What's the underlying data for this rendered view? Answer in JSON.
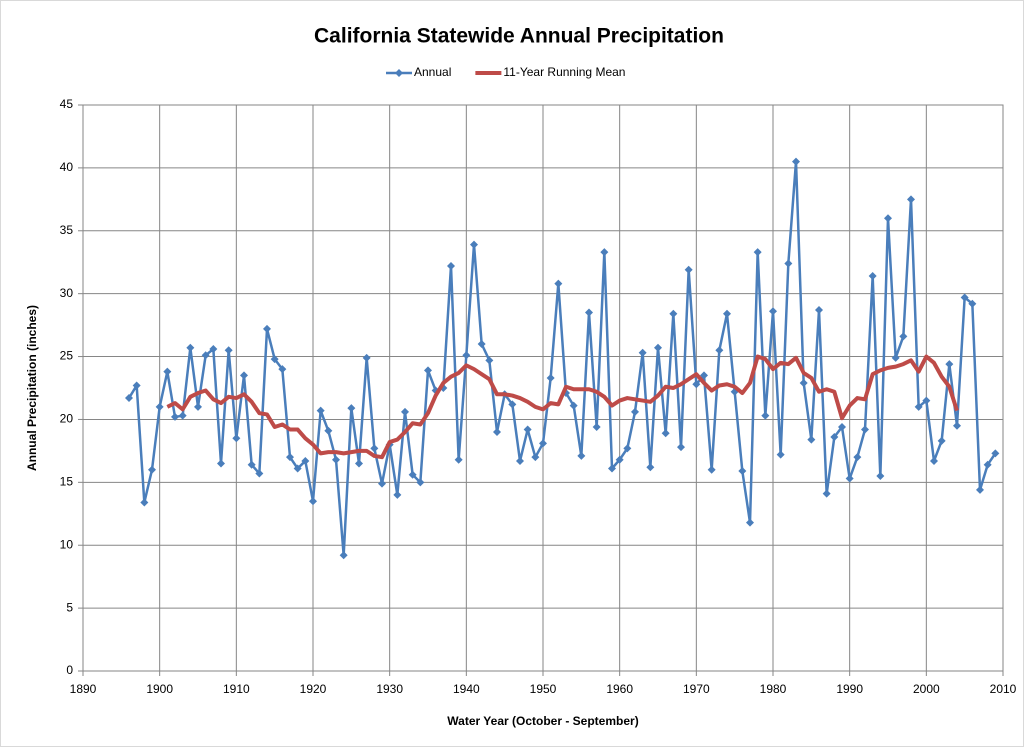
{
  "chart_data": {
    "type": "line",
    "title": "California Statewide Annual Precipitation",
    "xlabel": "Water Year (October - September)",
    "ylabel": "Annual Precipitation (inches)",
    "x": [
      1896,
      1897,
      1898,
      1899,
      1900,
      1901,
      1902,
      1903,
      1904,
      1905,
      1906,
      1907,
      1908,
      1909,
      1910,
      1911,
      1912,
      1913,
      1914,
      1915,
      1916,
      1917,
      1918,
      1919,
      1920,
      1921,
      1922,
      1923,
      1924,
      1925,
      1926,
      1927,
      1928,
      1929,
      1930,
      1931,
      1932,
      1933,
      1934,
      1935,
      1936,
      1937,
      1938,
      1939,
      1940,
      1941,
      1942,
      1943,
      1944,
      1945,
      1946,
      1947,
      1948,
      1949,
      1950,
      1951,
      1952,
      1953,
      1954,
      1955,
      1956,
      1957,
      1958,
      1959,
      1960,
      1961,
      1962,
      1963,
      1964,
      1965,
      1966,
      1967,
      1968,
      1969,
      1970,
      1971,
      1972,
      1973,
      1974,
      1975,
      1976,
      1977,
      1978,
      1979,
      1980,
      1981,
      1982,
      1983,
      1984,
      1985,
      1986,
      1987,
      1988,
      1989,
      1990,
      1991,
      1992,
      1993,
      1994,
      1995,
      1996,
      1997,
      1998,
      1999,
      2000,
      2001,
      2002,
      2003,
      2004,
      2005,
      2006,
      2007,
      2008,
      2009
    ],
    "series": [
      {
        "name": "Annual",
        "color": "#4a7ebb",
        "marker": "diamond",
        "values": [
          21.7,
          22.7,
          13.4,
          16.0,
          21.0,
          23.8,
          20.2,
          20.3,
          25.7,
          21.0,
          25.1,
          25.6,
          16.5,
          25.5,
          18.5,
          23.5,
          16.4,
          15.7,
          27.2,
          24.8,
          24.0,
          17.0,
          16.1,
          16.7,
          13.5,
          20.7,
          19.1,
          16.8,
          9.2,
          20.9,
          16.5,
          24.9,
          17.7,
          14.9,
          18.0,
          14.0,
          20.6,
          15.6,
          15.0,
          23.9,
          22.3,
          22.5,
          32.2,
          16.8,
          25.1,
          33.9,
          26.0,
          24.7,
          19.0,
          22.0,
          21.2,
          16.7,
          19.2,
          17.0,
          18.1,
          23.3,
          30.8,
          22.1,
          21.1,
          17.1,
          28.5,
          19.4,
          33.3,
          16.1,
          16.8,
          17.7,
          20.6,
          25.3,
          16.2,
          25.7,
          18.9,
          28.4,
          17.8,
          31.9,
          22.8,
          23.5,
          16.0,
          25.5,
          28.4,
          22.2,
          15.9,
          11.8,
          33.3,
          20.3,
          28.6,
          17.2,
          32.4,
          40.5,
          22.9,
          18.4,
          28.7,
          14.1,
          18.6,
          19.4,
          15.3,
          17.0,
          19.2,
          31.4,
          15.5,
          36.0,
          24.9,
          26.6,
          37.5,
          21.0,
          21.5,
          16.7,
          18.3,
          24.4,
          19.5,
          29.7,
          29.2,
          14.4,
          16.4,
          17.3
        ]
      },
      {
        "name": "11-Year Running Mean",
        "color": "#be4b48",
        "values": [
          null,
          null,
          null,
          null,
          null,
          21.0,
          21.3,
          20.8,
          21.8,
          22.1,
          22.3,
          21.6,
          21.3,
          21.8,
          21.7,
          22.0,
          21.4,
          20.5,
          20.4,
          19.4,
          19.6,
          19.2,
          19.2,
          18.5,
          18.0,
          17.3,
          17.4,
          17.4,
          17.3,
          17.4,
          17.5,
          17.5,
          17.1,
          17.0,
          18.2,
          18.4,
          19.0,
          19.7,
          19.6,
          20.5,
          21.9,
          22.9,
          23.4,
          23.7,
          24.3,
          24.0,
          23.6,
          23.2,
          22.0,
          22.0,
          21.9,
          21.7,
          21.4,
          21.0,
          20.8,
          21.3,
          21.2,
          22.6,
          22.4,
          22.4,
          22.4,
          22.2,
          21.8,
          21.1,
          21.5,
          21.7,
          21.6,
          21.5,
          21.4,
          21.9,
          22.6,
          22.5,
          22.8,
          23.2,
          23.6,
          22.9,
          22.3,
          22.7,
          22.8,
          22.6,
          22.1,
          22.9,
          25.0,
          24.8,
          24.0,
          24.5,
          24.4,
          24.9,
          23.7,
          23.3,
          22.2,
          22.4,
          22.2,
          20.1,
          21.1,
          21.7,
          21.6,
          23.6,
          23.9,
          24.1,
          24.2,
          24.4,
          24.7,
          23.8,
          25.0,
          24.5,
          23.4,
          22.6,
          20.7,
          null,
          null,
          null,
          null,
          null
        ]
      }
    ],
    "xlim": [
      1890,
      2010
    ],
    "xticks": [
      1890,
      1900,
      1910,
      1920,
      1930,
      1940,
      1950,
      1960,
      1970,
      1980,
      1990,
      2000,
      2010
    ],
    "ylim": [
      0,
      45
    ],
    "yticks": [
      0,
      5,
      10,
      15,
      20,
      25,
      30,
      35,
      40,
      45
    ],
    "grid": true,
    "legend": "top"
  }
}
